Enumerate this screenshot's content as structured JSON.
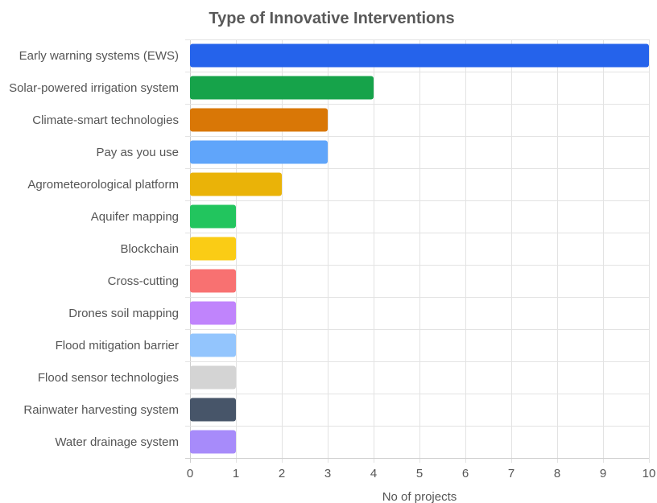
{
  "chart_data": {
    "type": "bar",
    "orientation": "horizontal",
    "title": "Type of Innovative Interventions",
    "xlabel": "No of projects",
    "ylabel": "",
    "xlim": [
      0,
      10
    ],
    "x_ticks": [
      "0",
      "1",
      "2",
      "3",
      "4",
      "5",
      "6",
      "7",
      "8",
      "9",
      "10"
    ],
    "grid": true,
    "legend": "none",
    "categories": [
      "Early warning systems (EWS)",
      "Solar-powered irrigation system",
      "Climate-smart technologies",
      "Pay as you use",
      "Agrometeorological platform",
      "Aquifer mapping",
      "Blockchain",
      "Cross-cutting",
      "Drones soil mapping",
      "Flood mitigation barrier",
      "Flood sensor technologies",
      "Rainwater harvesting system",
      "Water drainage system"
    ],
    "values": [
      10,
      4,
      3,
      3,
      2,
      1,
      1,
      1,
      1,
      1,
      1,
      1,
      1
    ],
    "colors": [
      "#2563eb",
      "#16a34a",
      "#d97706",
      "#60a5fa",
      "#eab308",
      "#22c55e",
      "#facc15",
      "#f87171",
      "#c084fc",
      "#93c5fd",
      "#d4d4d4",
      "#475569",
      "#a78bfa"
    ]
  }
}
